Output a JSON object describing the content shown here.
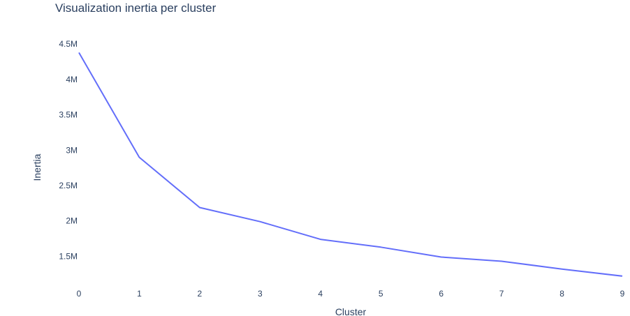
{
  "chart_data": {
    "type": "line",
    "title": "Visualization inertia per cluster",
    "xlabel": "Cluster",
    "ylabel": "Inertia",
    "x": [
      0,
      1,
      2,
      3,
      4,
      5,
      6,
      7,
      8,
      9
    ],
    "series": [
      {
        "values": [
          4380000,
          2900000,
          2190000,
          1990000,
          1740000,
          1630000,
          1490000,
          1430000,
          1320000,
          1220000
        ]
      }
    ],
    "xticks": [
      "0",
      "1",
      "2",
      "3",
      "4",
      "5",
      "6",
      "7",
      "8",
      "9"
    ],
    "yticks": [
      {
        "value": 1500000,
        "label": "1.5M"
      },
      {
        "value": 2000000,
        "label": "2M"
      },
      {
        "value": 2500000,
        "label": "2.5M"
      },
      {
        "value": 3000000,
        "label": "3M"
      },
      {
        "value": 3500000,
        "label": "3.5M"
      },
      {
        "value": 4000000,
        "label": "4M"
      },
      {
        "value": 4500000,
        "label": "4.5M"
      }
    ],
    "xlim": [
      0,
      9
    ],
    "ylim": [
      1100000,
      4650000
    ],
    "grid": false,
    "legend": "none",
    "line_color": "#636efa"
  }
}
